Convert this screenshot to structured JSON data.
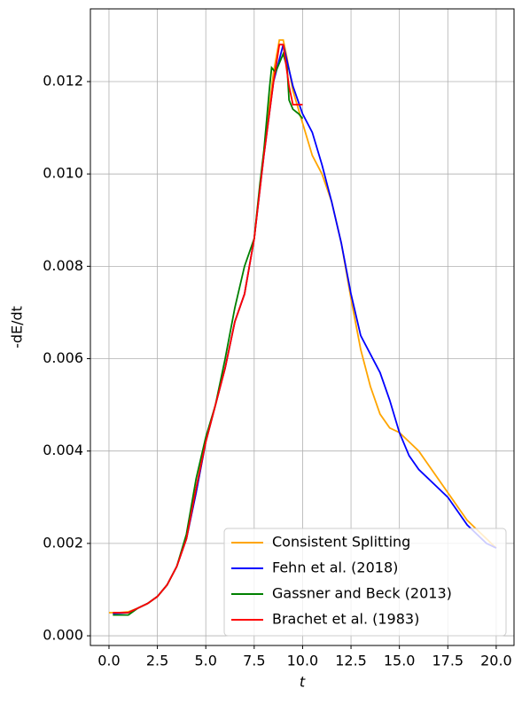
{
  "chart_data": {
    "type": "line",
    "xlabel": "t",
    "ylabel": "-dE/dt",
    "xlim": [
      -0.96,
      20.92
    ],
    "ylim": [
      -0.00021,
      0.013574
    ],
    "xticks": [
      {
        "value": 0,
        "label": "0.0"
      },
      {
        "value": 2.5,
        "label": "2.5"
      },
      {
        "value": 5,
        "label": "5.0"
      },
      {
        "value": 7.5,
        "label": "7.5"
      },
      {
        "value": 10,
        "label": "10.0"
      },
      {
        "value": 12.5,
        "label": "12.5"
      },
      {
        "value": 15,
        "label": "15.0"
      },
      {
        "value": 17.5,
        "label": "17.5"
      },
      {
        "value": 20,
        "label": "20.0"
      }
    ],
    "yticks": [
      {
        "value": 0,
        "label": "0.000"
      },
      {
        "value": 0.002,
        "label": "0.002"
      },
      {
        "value": 0.004,
        "label": "0.004"
      },
      {
        "value": 0.006,
        "label": "0.006"
      },
      {
        "value": 0.008,
        "label": "0.008"
      },
      {
        "value": 0.01,
        "label": "0.010"
      },
      {
        "value": 0.012,
        "label": "0.012"
      }
    ],
    "grid": true,
    "legend": "lower right",
    "series": [
      {
        "name": "Consistent Splitting",
        "color": "#ffa500",
        "x": [
          0,
          0.5,
          1,
          1.5,
          2,
          2.5,
          3,
          3.5,
          4,
          4.5,
          5,
          5.5,
          6,
          6.5,
          7,
          7.5,
          8,
          8.5,
          8.8,
          9,
          9.2,
          9.5,
          10,
          10.5,
          11,
          11.5,
          12,
          12.5,
          13,
          13.5,
          14,
          14.5,
          15,
          15.5,
          16,
          16.5,
          17,
          17.5,
          18,
          18.5,
          19,
          19.5,
          20
        ],
        "values": [
          0.0005,
          0.0005,
          0.00052,
          0.0006,
          0.0007,
          0.00085,
          0.0011,
          0.0015,
          0.0021,
          0.0031,
          0.0042,
          0.005,
          0.0058,
          0.0068,
          0.0074,
          0.0086,
          0.0105,
          0.0122,
          0.0129,
          0.0129,
          0.0125,
          0.0118,
          0.0111,
          0.0104,
          0.01,
          0.0094,
          0.0085,
          0.0073,
          0.0062,
          0.0054,
          0.0048,
          0.0045,
          0.0044,
          0.0042,
          0.004,
          0.0037,
          0.0034,
          0.0031,
          0.0028,
          0.0025,
          0.0023,
          0.0021,
          0.0019
        ]
      },
      {
        "name": "Fehn et al. (2018)",
        "color": "#0000ff",
        "x": [
          0.2,
          1,
          1.5,
          2,
          2.5,
          3,
          3.5,
          4,
          4.5,
          5,
          5.5,
          6,
          6.5,
          7,
          7.5,
          8,
          8.5,
          9,
          9.5,
          10,
          10.5,
          11,
          11.5,
          12,
          12.5,
          13,
          13.5,
          14,
          14.5,
          15,
          15.5,
          16,
          16.5,
          17,
          17.5,
          18,
          18.5,
          19,
          19.5,
          20
        ],
        "values": [
          0.00048,
          0.0005,
          0.0006,
          0.0007,
          0.00085,
          0.0011,
          0.0015,
          0.0021,
          0.0031,
          0.0042,
          0.005,
          0.0058,
          0.0068,
          0.0074,
          0.0086,
          0.0104,
          0.012,
          0.0128,
          0.0119,
          0.0113,
          0.0109,
          0.0102,
          0.0094,
          0.0085,
          0.0074,
          0.0065,
          0.0061,
          0.0057,
          0.0051,
          0.0044,
          0.0039,
          0.0036,
          0.0034,
          0.0032,
          0.003,
          0.0027,
          0.0024,
          0.0022,
          0.002,
          0.0019
        ]
      },
      {
        "name": "Gassner and Beck (2013)",
        "color": "#008000",
        "x": [
          0.2,
          1,
          1.5,
          2,
          2.5,
          3,
          3.5,
          4,
          4.5,
          5,
          5.5,
          6,
          6.5,
          7,
          7.5,
          7.8,
          8,
          8.3,
          8.4,
          8.6,
          8.8,
          9,
          9.2,
          9.3,
          9.5,
          9.8,
          10
        ],
        "values": [
          0.00045,
          0.00045,
          0.0006,
          0.0007,
          0.00085,
          0.0011,
          0.0015,
          0.0022,
          0.0034,
          0.0043,
          0.005,
          0.006,
          0.0071,
          0.008,
          0.0086,
          0.0098,
          0.0105,
          0.0119,
          0.0123,
          0.0122,
          0.0124,
          0.0126,
          0.0123,
          0.0116,
          0.0114,
          0.0113,
          0.0112
        ]
      },
      {
        "name": "Brachet et al. (1983)",
        "color": "#ff0000",
        "x": [
          0.2,
          1,
          1.5,
          2,
          2.5,
          3,
          3.5,
          4,
          4.5,
          5,
          5.5,
          6,
          6.5,
          7,
          7.5,
          8,
          8.5,
          8.8,
          9,
          9.3,
          9.5,
          10
        ],
        "values": [
          0.0005,
          0.0005,
          0.0006,
          0.0007,
          0.00085,
          0.0011,
          0.0015,
          0.0021,
          0.0032,
          0.0042,
          0.005,
          0.0058,
          0.0068,
          0.0074,
          0.0086,
          0.0104,
          0.012,
          0.0128,
          0.0128,
          0.0119,
          0.0115,
          0.0115
        ]
      }
    ]
  }
}
